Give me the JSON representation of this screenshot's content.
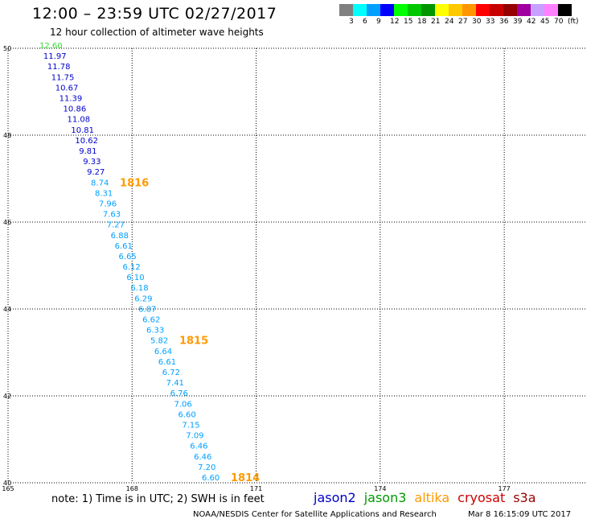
{
  "header": {
    "title": "12:00 – 23:59 UTC 02/27/2017",
    "subtitle": "12 hour collection of altimeter wave heights"
  },
  "legend": [
    {
      "color": "#808080",
      "label": "3"
    },
    {
      "color": "#00ffff",
      "label": "6"
    },
    {
      "color": "#00a0ff",
      "label": "9"
    },
    {
      "color": "#0000ff",
      "label": "12"
    },
    {
      "color": "#00ff00",
      "label": "15"
    },
    {
      "color": "#00c800",
      "label": "18"
    },
    {
      "color": "#009600",
      "label": "21"
    },
    {
      "color": "#ffff00",
      "label": "24"
    },
    {
      "color": "#ffc800",
      "label": "27"
    },
    {
      "color": "#ff9600",
      "label": "30"
    },
    {
      "color": "#ff0000",
      "label": "33"
    },
    {
      "color": "#c80000",
      "label": "36"
    },
    {
      "color": "#960000",
      "label": "39"
    },
    {
      "color": "#a000a0",
      "label": "42"
    },
    {
      "color": "#c8a0ff",
      "label": "45"
    },
    {
      "color": "#ff80ff",
      "label": "70"
    },
    {
      "color": "#000000",
      "label": "(ft)"
    }
  ],
  "chart_data": {
    "type": "scatter",
    "xlim": [
      165,
      179
    ],
    "ylim": [
      40,
      50
    ],
    "grid": true,
    "x_ticks": [
      "165",
      "168",
      "171",
      "174",
      "177"
    ],
    "y_ticks": [
      "40",
      "42",
      "44",
      "46",
      "48",
      "50"
    ],
    "series": [
      {
        "name": "jason2",
        "color": "#0000cc",
        "points": [
          {
            "label": "12.60",
            "color": "#33dd33"
          },
          {
            "label": "11.97",
            "color": "#0000cc"
          },
          {
            "label": "11.78",
            "color": "#0000cc"
          },
          {
            "label": "11.75",
            "color": "#0000cc"
          },
          {
            "label": "10.67",
            "color": "#0000cc"
          },
          {
            "label": "11.39",
            "color": "#0000cc"
          },
          {
            "label": "10.86",
            "color": "#0000cc"
          },
          {
            "label": "11.08",
            "color": "#0000cc"
          },
          {
            "label": "10.81",
            "color": "#0000cc"
          },
          {
            "label": "10.62",
            "color": "#0000cc"
          },
          {
            "label": "9.81",
            "color": "#0000cc"
          },
          {
            "label": "9.33",
            "color": "#0000cc"
          },
          {
            "label": "9.27",
            "color": "#0000cc"
          },
          {
            "label": "8.74",
            "color": "#00a0ff"
          },
          {
            "label": "8.31",
            "color": "#00a0ff"
          },
          {
            "label": "7.96",
            "color": "#00a0ff"
          },
          {
            "label": "7.63",
            "color": "#00a0ff"
          },
          {
            "label": "7.27",
            "color": "#00a0ff"
          },
          {
            "label": "6.88",
            "color": "#00a0ff"
          },
          {
            "label": "6.61",
            "color": "#00a0ff"
          },
          {
            "label": "6.65",
            "color": "#00a0ff"
          },
          {
            "label": "6.12",
            "color": "#00a0ff"
          },
          {
            "label": "6.10",
            "color": "#00a0ff"
          },
          {
            "label": "6.18",
            "color": "#00a0ff"
          },
          {
            "label": "6.29",
            "color": "#00a0ff"
          },
          {
            "label": "6.87",
            "color": "#00a0ff"
          },
          {
            "label": "6.62",
            "color": "#00a0ff"
          },
          {
            "label": "6.33",
            "color": "#00a0ff"
          },
          {
            "label": "5.82",
            "color": "#00a0ff"
          },
          {
            "label": "6.64",
            "color": "#00a0ff"
          },
          {
            "label": "6.61",
            "color": "#00a0ff"
          },
          {
            "label": "6.72",
            "color": "#00a0ff"
          },
          {
            "label": "7.41",
            "color": "#00a0ff"
          },
          {
            "label": "6.76",
            "color": "#00a0ff"
          },
          {
            "label": "7.06",
            "color": "#00a0ff"
          },
          {
            "label": "6.60",
            "color": "#00a0ff"
          },
          {
            "label": "7.15",
            "color": "#00a0ff"
          },
          {
            "label": "7.09",
            "color": "#00a0ff"
          },
          {
            "label": "6.46",
            "color": "#00a0ff"
          },
          {
            "label": "6.46",
            "color": "#00a0ff"
          },
          {
            "label": "7.20",
            "color": "#00a0ff"
          },
          {
            "label": "6.60",
            "color": "#00a0ff"
          }
        ]
      }
    ],
    "annotations": [
      {
        "text": "1816",
        "color": "#ff9900"
      },
      {
        "text": "1815",
        "color": "#ff9900"
      },
      {
        "text": "1814",
        "color": "#ff9900"
      }
    ]
  },
  "footer": {
    "note": "note: 1) Time is in UTC; 2) SWH is in feet",
    "missions": [
      {
        "name": "jason2",
        "color": "#0000cc"
      },
      {
        "name": "jason3",
        "color": "#009900"
      },
      {
        "name": "altika",
        "color": "#ff9900"
      },
      {
        "name": "cryosat",
        "color": "#cc0000"
      },
      {
        "name": "s3a",
        "color": "#990000"
      }
    ],
    "credit": "NOAA/NESDIS Center for Satellite Applications and Research",
    "timestamp": "Mar  8 16:15:09 UTC 2017"
  }
}
